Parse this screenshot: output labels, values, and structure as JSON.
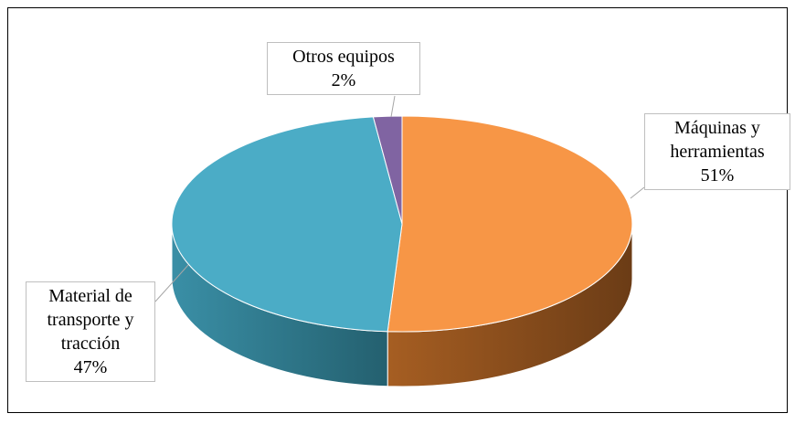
{
  "chart_data": {
    "type": "pie3d",
    "categories": [
      "Máquinas y herramientas",
      "Material de transporte y tracción",
      "Otros equipos"
    ],
    "values": [
      51,
      47,
      2
    ],
    "value_labels": [
      "51%",
      "47%",
      "2%"
    ],
    "colors": [
      "#f79646",
      "#4bacc6",
      "#8064a2"
    ]
  }
}
